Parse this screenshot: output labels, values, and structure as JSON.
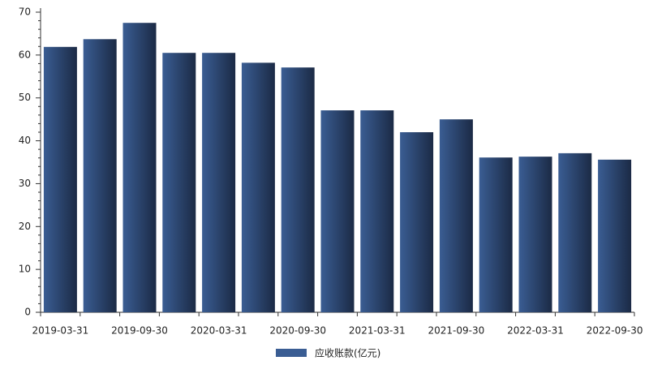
{
  "chart_data": {
    "type": "bar",
    "categories": [
      "2019-03-31",
      null,
      "2019-09-30",
      null,
      "2020-03-31",
      null,
      "2020-09-30",
      null,
      "2021-03-31",
      null,
      "2021-09-30",
      null,
      "2022-03-31",
      null,
      "2022-09-30"
    ],
    "series": [
      {
        "name": "应收账款(亿元)",
        "color": "#3a5d93",
        "values": [
          61.9,
          63.7,
          67.5,
          60.5,
          60.5,
          58.2,
          57.1,
          47.1,
          47.1,
          42.0,
          45.0,
          36.1,
          36.3,
          37.1,
          35.6
        ]
      }
    ],
    "ylim": [
      0,
      70
    ],
    "yticks": [
      0,
      10,
      20,
      30,
      40,
      50,
      60,
      70
    ],
    "grid": false
  }
}
